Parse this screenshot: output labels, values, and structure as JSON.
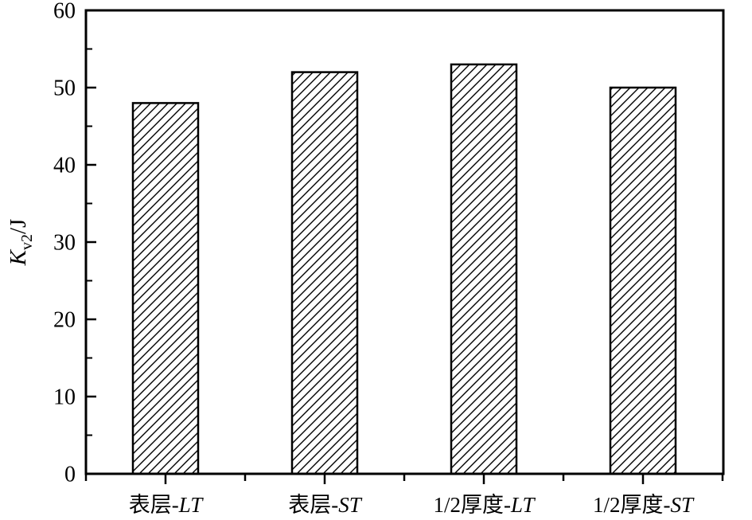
{
  "chart_data": {
    "type": "bar",
    "title": "",
    "xlabel": "",
    "ylabel": "Kv2/J",
    "ylabel_parts": {
      "main": "K",
      "sub": "v2",
      "suffix": "/J"
    },
    "categories": [
      "表层-LT",
      "表层-ST",
      "1/2厚度-LT",
      "1/2厚度-ST"
    ],
    "category_parts": [
      {
        "prefix": "表层-",
        "italic": "LT"
      },
      {
        "prefix": "表层-",
        "italic": "ST"
      },
      {
        "prefix": "1/2厚度-",
        "italic": "LT"
      },
      {
        "prefix": "1/2厚度-",
        "italic": "ST"
      }
    ],
    "values": [
      48,
      52,
      53,
      50
    ],
    "ylim": [
      0,
      60
    ],
    "yticks": [
      0,
      10,
      20,
      30,
      40,
      50,
      60
    ],
    "ytick_minor_step": 5,
    "grid": false,
    "legend": "none",
    "bar_fill": "diagonal-hatch",
    "colors": {
      "axis": "#000000",
      "bar_outline": "#000000",
      "hatch": "#000000",
      "background": "#ffffff"
    }
  }
}
